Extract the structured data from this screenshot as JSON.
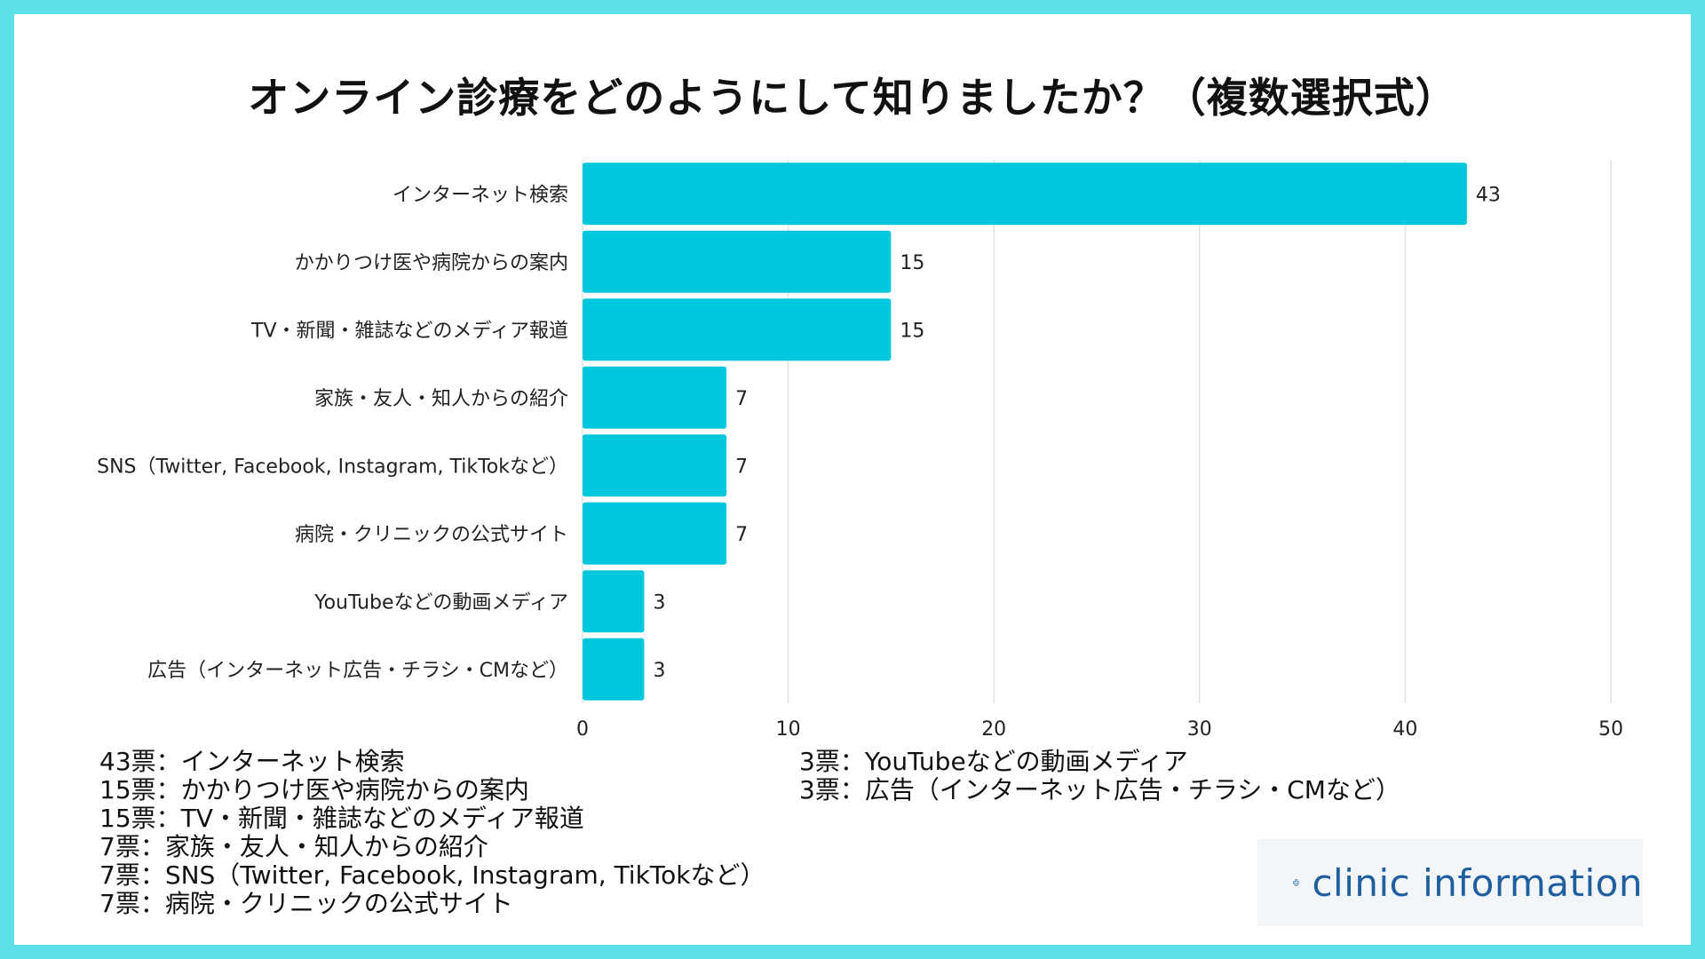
{
  "title": "オンライン診療をどのようにして知りましたか？（複数選択式）",
  "chart_data": {
    "type": "bar",
    "orientation": "horizontal",
    "title": "オンライン診療をどのようにして知りましたか？（複数選択式）",
    "categories": [
      "インターネット検索",
      "かかりつけ医や病院からの案内",
      "TV・新聞・雑誌などのメディア報道",
      "家族・友人・知人からの紹介",
      "SNS（Twitter, Facebook, Instagram, TikTokなど）",
      "病院・クリニックの公式サイト",
      "YouTubeなどの動画メディア",
      "広告（インターネット広告・チラシ・CMなど）"
    ],
    "values": [
      43,
      15,
      15,
      7,
      7,
      7,
      3,
      3
    ],
    "xlim": [
      0,
      50
    ],
    "xticks": [
      0,
      10,
      20,
      30,
      40,
      50
    ],
    "xlabel": "",
    "ylabel": "",
    "grid": true,
    "bar_color": "#00c8dc"
  },
  "legend_left": [
    "43票：インターネット検索",
    "15票：かかりつけ医や病院からの案内",
    "15票：TV・新聞・雑誌などのメディア報道",
    "7票：家族・友人・知人からの紹介",
    "7票：SNS（Twitter, Facebook, Instagram, TikTokなど）",
    "7票：病院・クリニックの公式サイト"
  ],
  "legend_right": [
    "3票：YouTubeなどの動画メディア",
    "3票：広告（インターネット広告・チラシ・CMなど）"
  ],
  "logo": {
    "text": "clinic information",
    "icon": "medical-cross-icon",
    "color": "#1f5f9f"
  }
}
